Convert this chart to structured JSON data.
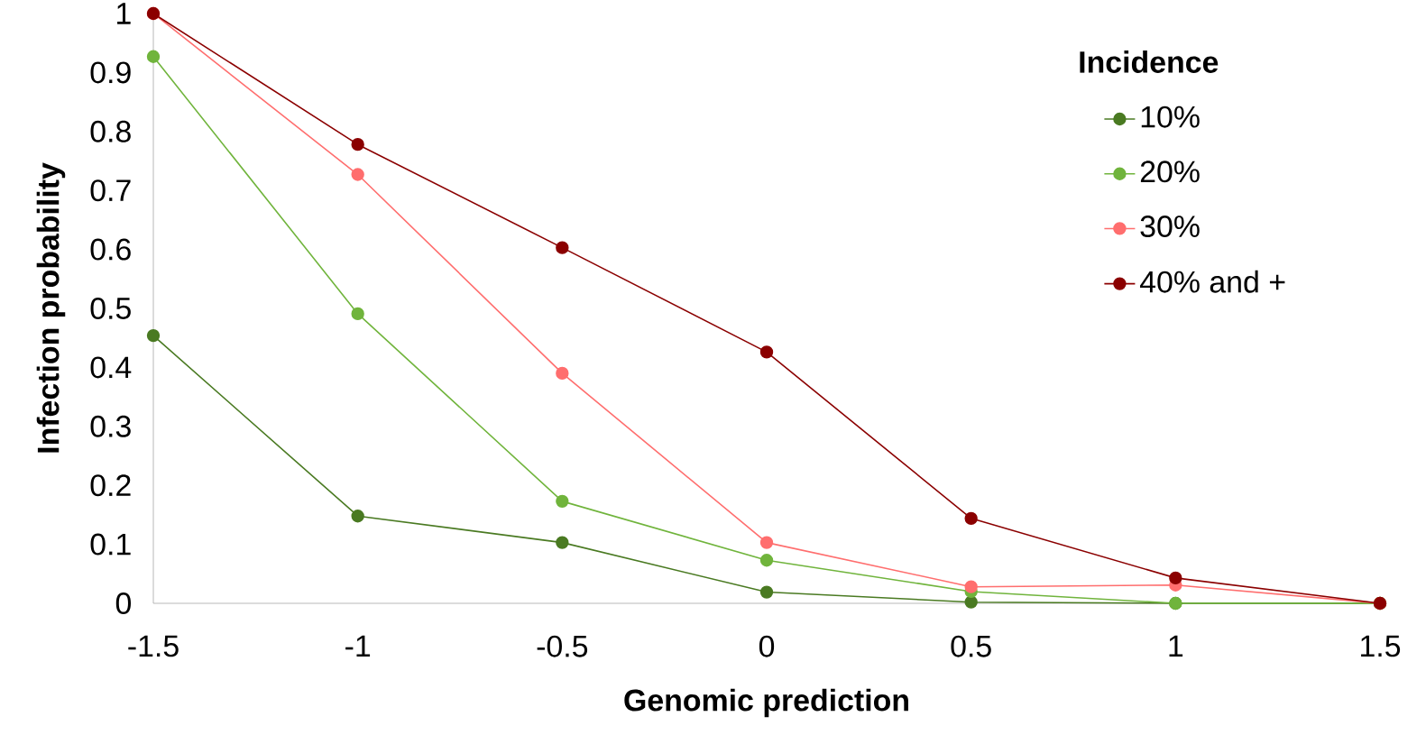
{
  "chart_data": {
    "type": "line",
    "xlabel": "Genomic prediction",
    "ylabel": "Infection probability",
    "legend_title": "Incidence",
    "x": [
      -1.5,
      -1,
      -0.5,
      0,
      0.5,
      1,
      1.5
    ],
    "series": [
      {
        "name": "10%",
        "color": "#4a7a22",
        "values": [
          0.454,
          0.148,
          0.103,
          0.019,
          0.002,
          0,
          0
        ]
      },
      {
        "name": "20%",
        "color": "#70b43c",
        "values": [
          0.927,
          0.491,
          0.173,
          0.073,
          0.02,
          0,
          0
        ]
      },
      {
        "name": "30%",
        "color": "#ff6e6e",
        "values": [
          1,
          0.727,
          0.39,
          0.103,
          0.028,
          0.031,
          0
        ]
      },
      {
        "name": "40%  and +",
        "color": "#8b0000",
        "values": [
          1,
          0.778,
          0.603,
          0.426,
          0.144,
          0.043,
          0
        ]
      }
    ],
    "xlim": [
      -1.5,
      1.5
    ],
    "ylim": [
      0,
      1
    ],
    "xticks": [
      -1.5,
      -1,
      -0.5,
      0,
      0.5,
      1,
      1.5
    ],
    "yticks": [
      0,
      0.1,
      0.2,
      0.3,
      0.4,
      0.5,
      0.6,
      0.7,
      0.8,
      0.9,
      1
    ],
    "legend": "top right",
    "marker": "circle",
    "line_style": "solid"
  }
}
